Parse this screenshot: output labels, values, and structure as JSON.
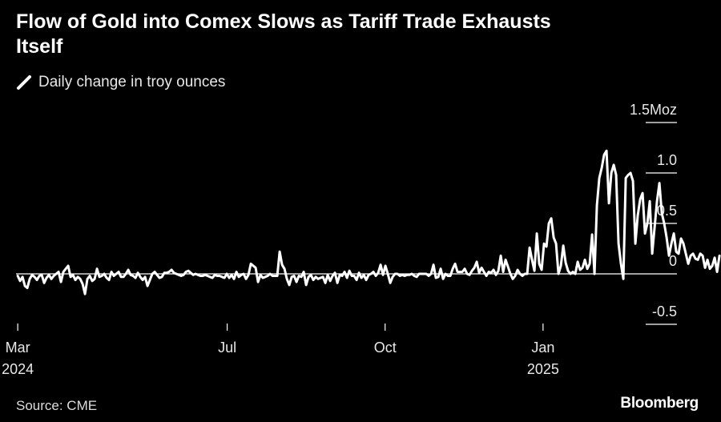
{
  "title": "Flow of Gold into Comex Slows as Tariff Trade Exhausts Itself",
  "legend_label": "Daily change in troy ounces",
  "source": "Source: CME",
  "brand": "Bloomberg",
  "colors": {
    "background": "#000000",
    "line": "#ffffff",
    "grid": "#ffffff",
    "text": "#ffffff"
  },
  "chart_data": {
    "type": "line",
    "title": "Flow of Gold into Comex Slows as Tariff Trade Exhausts Itself",
    "ylabel": "Daily change in troy ounces",
    "y_unit": "Moz",
    "ylim": [
      -0.5,
      1.5
    ],
    "y_ticks": [
      {
        "value": 1.5,
        "label": "1.5Moz"
      },
      {
        "value": 1.0,
        "label": "1.0"
      },
      {
        "value": 0.5,
        "label": "0.5"
      },
      {
        "value": 0,
        "label": "0"
      },
      {
        "value": -0.5,
        "label": "-0.5"
      }
    ],
    "x_domain": [
      "2024-02-29",
      "2025-03-20"
    ],
    "x_ticks": [
      {
        "date": "2024-03-01",
        "label": "Mar",
        "sublabel": "2024"
      },
      {
        "date": "2024-07-01",
        "label": "Jul",
        "sublabel": ""
      },
      {
        "date": "2024-10-01",
        "label": "Oct",
        "sublabel": ""
      },
      {
        "date": "2025-01-01",
        "label": "Jan",
        "sublabel": "2025"
      }
    ],
    "series": [
      {
        "name": "Daily change in troy ounces",
        "start_date": "2024-03-01",
        "step_days": 1.4,
        "values": [
          -0.02,
          -0.07,
          -0.03,
          -0.12,
          -0.14,
          -0.05,
          -0.01,
          -0.03,
          -0.06,
          -0.02,
          -0.01,
          -0.09,
          -0.04,
          -0.01,
          -0.05,
          -0.02,
          0.0,
          0.02,
          -0.08,
          0.02,
          0.05,
          0.08,
          -0.03,
          -0.01,
          -0.06,
          -0.03,
          -0.05,
          -0.1,
          -0.2,
          -0.05,
          -0.02,
          -0.07,
          -0.05,
          0.05,
          -0.03,
          -0.02,
          0.0,
          -0.04,
          -0.06,
          0.02,
          -0.02,
          0.0,
          0.02,
          -0.03,
          -0.03,
          0.0,
          0.04,
          -0.01,
          -0.02,
          -0.04,
          0.01,
          -0.03,
          -0.06,
          -0.03,
          -0.12,
          -0.06,
          0.0,
          0.02,
          -0.01,
          -0.04,
          -0.03,
          0.01,
          0.01,
          0.02,
          0.04,
          0.01,
          0.0,
          -0.01,
          -0.02,
          -0.01,
          0.02,
          0.03,
          0.01,
          -0.01,
          0.0,
          -0.01,
          -0.02,
          -0.02,
          -0.01,
          -0.02,
          -0.03,
          -0.04,
          -0.01,
          -0.02,
          -0.02,
          -0.03,
          -0.04,
          0.0,
          -0.04,
          -0.01,
          -0.05,
          0.02,
          -0.03,
          -0.01,
          0.0,
          -0.05,
          -0.01,
          0.1,
          0.08,
          0.06,
          -0.08,
          -0.01,
          -0.04,
          -0.03,
          -0.02,
          0.0,
          -0.02,
          -0.02,
          -0.02,
          0.22,
          0.09,
          0.05,
          -0.05,
          -0.11,
          -0.03,
          -0.02,
          -0.08,
          -0.02,
          -0.03,
          0.02,
          -0.11,
          -0.03,
          -0.01,
          -0.06,
          -0.03,
          -0.05,
          -0.04,
          -0.03,
          -0.09,
          -0.01,
          -0.07,
          -0.02,
          0.01,
          -0.09,
          -0.01,
          -0.02,
          0.02,
          -0.04,
          0.03,
          -0.02,
          -0.02,
          -0.06,
          0.01,
          -0.04,
          -0.01,
          -0.06,
          -0.01,
          0.0,
          0.02,
          -0.02,
          0.01,
          0.09,
          -0.01,
          0.08,
          0.0,
          -0.09,
          -0.03,
          0.0,
          0.0,
          -0.02,
          -0.01,
          -0.02,
          -0.01,
          -0.01,
          0.0,
          -0.02,
          -0.03,
          0.0,
          0.0,
          0.0,
          0.0,
          -0.02,
          0.0,
          0.09,
          -0.04,
          -0.03,
          0.05,
          -0.05,
          0.0,
          -0.02,
          -0.02,
          0.05,
          0.1,
          0.02,
          0.02,
          0.02,
          0.05,
          0.0,
          -0.01,
          0.03,
          0.06,
          0.12,
          0.01,
          0.06,
          0.02,
          -0.02,
          0.02,
          0.01,
          0.04,
          -0.01,
          0.03,
          0.18,
          0.02,
          0.14,
          0.07,
          0.0,
          -0.05,
          -0.02,
          0.04,
          0.0,
          -0.02,
          0.0,
          0.0,
          0.26,
          0.14,
          0.03,
          0.4,
          0.1,
          0.04,
          0.3,
          0.27,
          0.5,
          0.55,
          0.36,
          0.3,
          0.0,
          0.08,
          0.28,
          0.11,
          0.03,
          0.0,
          0.02,
          0.0,
          0.12,
          0.04,
          0.06,
          0.14,
          0.05,
          0.1,
          0.39,
          0.0,
          0.68,
          0.95,
          1.05,
          1.18,
          1.22,
          0.7,
          1.0,
          1.08,
          0.98,
          0.3,
          0.1,
          -0.05,
          0.95,
          0.98,
          1.0,
          0.92,
          0.3,
          0.58,
          0.74,
          0.8,
          0.4,
          0.5,
          0.72,
          0.2,
          0.46,
          0.72,
          0.9,
          0.6,
          0.5,
          0.36,
          0.18,
          0.3,
          0.4,
          0.22,
          0.2,
          0.35,
          0.3,
          0.2,
          0.1,
          0.18,
          0.2,
          0.15,
          0.14,
          0.2,
          0.18,
          0.06,
          0.14,
          0.05,
          0.08,
          0.16,
          0.02,
          0.18
        ]
      }
    ]
  }
}
